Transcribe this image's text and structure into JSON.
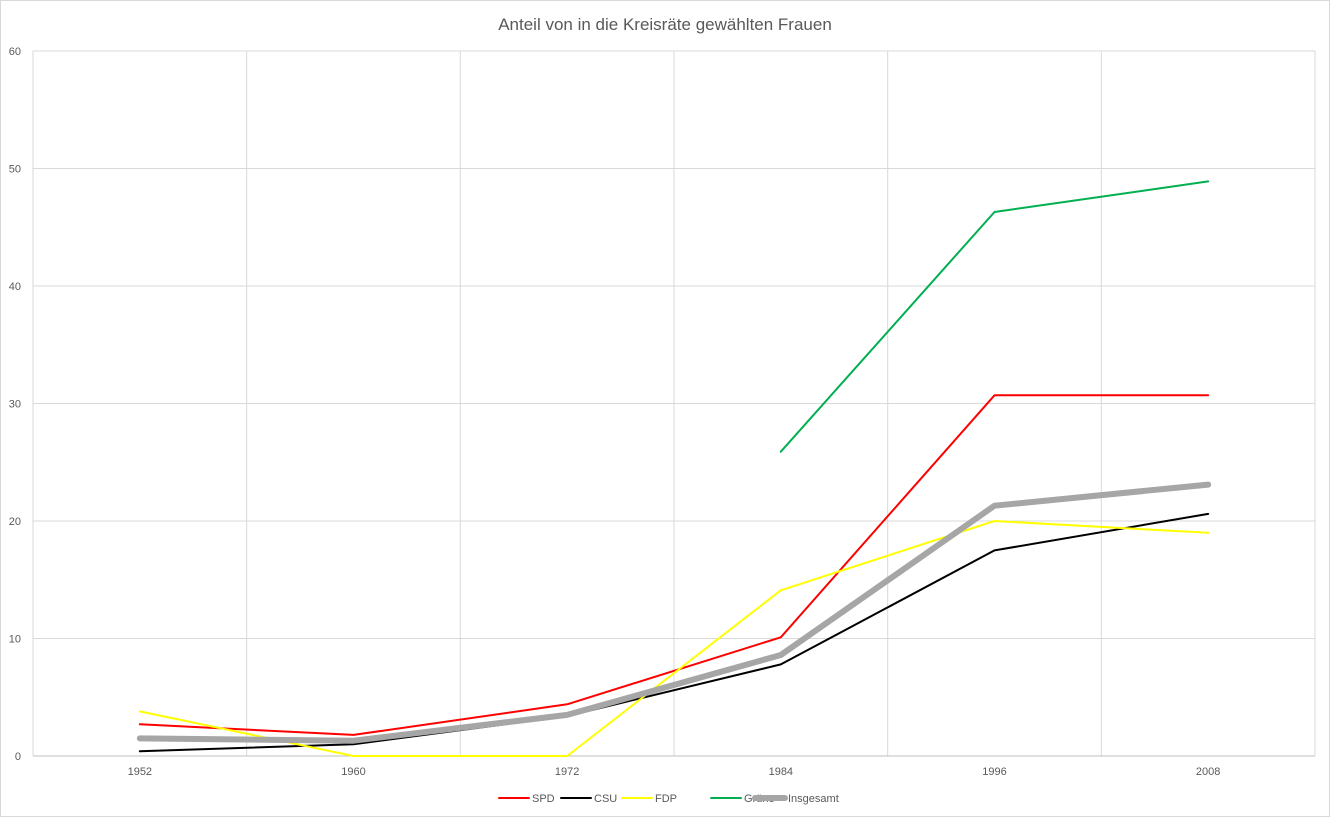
{
  "chart_data": {
    "type": "line",
    "title": "Anteil von in die Kreisräte gewählten Frauen",
    "xlabel": "",
    "ylabel": "",
    "x_ticks": [
      "1952",
      "1960",
      "1972",
      "1984",
      "1996",
      "2008"
    ],
    "y_ticks": [
      "0",
      "10",
      "20",
      "30",
      "40",
      "50",
      "60"
    ],
    "ylim": [
      0,
      60
    ],
    "grid": true,
    "legend_position": "bottom",
    "series": [
      {
        "name": "SPD",
        "color": "#ff0000",
        "width": 2,
        "points": [
          [
            1952,
            2.7
          ],
          [
            1960,
            1.8
          ],
          [
            1972,
            4.4
          ],
          [
            1984,
            10.1
          ],
          [
            1996,
            30.7
          ],
          [
            2008,
            30.7
          ]
        ]
      },
      {
        "name": "CSU",
        "color": "#000000",
        "width": 2,
        "points": [
          [
            1952,
            0.4
          ],
          [
            1960,
            1.0
          ],
          [
            1972,
            3.4
          ],
          [
            1984,
            7.8
          ],
          [
            1996,
            17.5
          ],
          [
            2008,
            20.6
          ]
        ]
      },
      {
        "name": "FDP",
        "color": "#ffff00",
        "width": 2,
        "points": [
          [
            1952,
            3.8
          ],
          [
            1960,
            0
          ],
          [
            1972,
            0
          ],
          [
            1984,
            14.1
          ],
          [
            1996,
            20.0
          ],
          [
            2008,
            19.0
          ]
        ]
      },
      {
        "name": "Grüne",
        "color": "#00b050",
        "width": 2,
        "points": [
          [
            1984,
            25.9
          ],
          [
            1996,
            46.3
          ],
          [
            2008,
            48.9
          ]
        ]
      },
      {
        "name": "Insgesamt",
        "color": "#a6a6a6",
        "width": 6,
        "points": [
          [
            1952,
            1.5
          ],
          [
            1960,
            1.3
          ],
          [
            1972,
            3.5
          ],
          [
            1984,
            8.6
          ],
          [
            1996,
            21.3
          ],
          [
            2008,
            23.1
          ]
        ]
      }
    ]
  }
}
